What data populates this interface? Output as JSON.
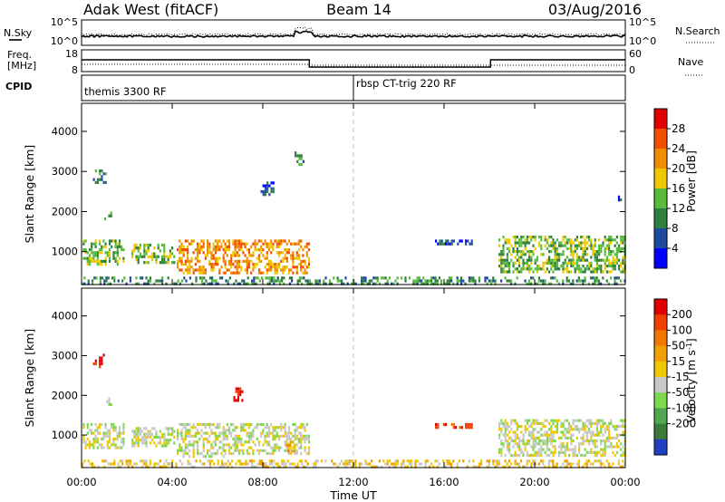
{
  "header": {
    "radar": "Adak West (fitACF)",
    "beam": "Beam 14",
    "date": "03/Aug/2016"
  },
  "colors": {
    "ink": "#000000",
    "ground_scatter": "#c8c8c8",
    "divider": "#c0c0c0"
  },
  "panels": {
    "nsky": {
      "left_label": "N.Sky",
      "right_label": "N.Search",
      "left_ticks": [
        "10^5",
        "10^0"
      ],
      "right_ticks": [
        "10^5",
        "10^0"
      ]
    },
    "freq": {
      "left_label_1": "Freq.",
      "left_label_2": "[MHz]",
      "right_label": "Nave",
      "left_ticks": [
        "18",
        "8"
      ],
      "right_ticks": [
        "60",
        "0"
      ]
    },
    "cpid": {
      "label": "CPID",
      "modes": [
        "themis 3300 RF",
        "rbsp CT-trig 220 RF"
      ]
    }
  },
  "xaxis": {
    "label": "Time UT",
    "ticks": [
      "00:00",
      "04:00",
      "08:00",
      "12:00",
      "16:00",
      "20:00",
      "00:00"
    ]
  },
  "chart_data": [
    {
      "type": "heatmap",
      "panel": "power",
      "ylabel": "Slant Range [km]",
      "yticks": [
        "1000",
        "2000",
        "3000",
        "4000"
      ],
      "ylim": [
        180,
        4700
      ],
      "xlim_hours": [
        0,
        24
      ],
      "colorbar": {
        "label": "Power [dB]",
        "ticks": [
          "4",
          "8",
          "12",
          "16",
          "20",
          "24",
          "28"
        ],
        "range": [
          0,
          32
        ],
        "colors": [
          "#0000ff",
          "#1e4ba0",
          "#2f7f3e",
          "#57bb3c",
          "#f0c800",
          "#f08c00",
          "#f05000",
          "#e10000"
        ]
      },
      "regions": [
        {
          "t": [
            0.05,
            1.85
          ],
          "r": [
            700,
            1300
          ],
          "level": 3
        },
        {
          "t": [
            0.5,
            1.05
          ],
          "r": [
            2750,
            3050
          ],
          "level": 2
        },
        {
          "t": [
            1.0,
            1.35
          ],
          "r": [
            1850,
            2000
          ],
          "level": 3
        },
        {
          "t": [
            2.2,
            4.05
          ],
          "r": [
            750,
            1200
          ],
          "level": 3
        },
        {
          "t": [
            4.2,
            6.25
          ],
          "r": [
            450,
            1300
          ],
          "level": 5
        },
        {
          "t": [
            6.3,
            10.0
          ],
          "r": [
            500,
            1300
          ],
          "level": 5
        },
        {
          "t": [
            7.9,
            8.5
          ],
          "r": [
            2450,
            2750
          ],
          "level": 1
        },
        {
          "t": [
            9.4,
            9.8
          ],
          "r": [
            3200,
            3500
          ],
          "level": 2
        },
        {
          "t": [
            15.6,
            17.2
          ],
          "r": [
            1180,
            1300
          ],
          "level": 1
        },
        {
          "t": [
            18.4,
            24.0
          ],
          "r": [
            500,
            1400
          ],
          "level": 3
        },
        {
          "t": [
            23.5,
            23.8
          ],
          "r": [
            2200,
            2400
          ],
          "level": 1
        },
        {
          "t": [
            0.0,
            24.0
          ],
          "r": [
            200,
            380
          ],
          "level": 2
        }
      ]
    },
    {
      "type": "heatmap",
      "panel": "velocity",
      "ylabel": "Slant Range [km]",
      "yticks": [
        "1000",
        "2000",
        "3000",
        "4000"
      ],
      "ylim": [
        180,
        4700
      ],
      "xlim_hours": [
        0,
        24
      ],
      "colorbar": {
        "label": "Velocity [m s^-1]",
        "ticks": [
          "200",
          "100",
          "50",
          "15",
          "-15",
          "-50",
          "-100",
          "-200"
        ],
        "range": [
          -250,
          250
        ],
        "colors": [
          "#2040c0",
          "#3a7a3a",
          "#4fa84f",
          "#7ed84e",
          "#c8c8c8",
          "#f0c800",
          "#f0a000",
          "#f07800",
          "#f04000",
          "#e10000"
        ]
      },
      "regions": [
        {
          "t": [
            0.05,
            1.85
          ],
          "r": [
            700,
            1300
          ],
          "level": 4
        },
        {
          "t": [
            0.5,
            1.0
          ],
          "r": [
            2750,
            3050
          ],
          "level": 9
        },
        {
          "t": [
            1.0,
            1.35
          ],
          "r": [
            1800,
            1950
          ],
          "level": 4
        },
        {
          "t": [
            2.2,
            4.05
          ],
          "r": [
            750,
            1200
          ],
          "level": 4
        },
        {
          "t": [
            4.2,
            6.25
          ],
          "r": [
            450,
            1300
          ],
          "level": 4
        },
        {
          "t": [
            6.3,
            10.0
          ],
          "r": [
            500,
            1300
          ],
          "level": 4
        },
        {
          "t": [
            6.7,
            7.1
          ],
          "r": [
            1850,
            2200
          ],
          "level": 9
        },
        {
          "t": [
            9.0,
            9.4
          ],
          "r": [
            600,
            850
          ],
          "level": 6
        },
        {
          "t": [
            15.6,
            17.2
          ],
          "r": [
            1180,
            1300
          ],
          "level": 8
        },
        {
          "t": [
            18.4,
            24.0
          ],
          "r": [
            500,
            1400
          ],
          "level": 4
        },
        {
          "t": [
            0.0,
            24.0
          ],
          "r": [
            200,
            380
          ],
          "level": 5
        }
      ]
    }
  ]
}
